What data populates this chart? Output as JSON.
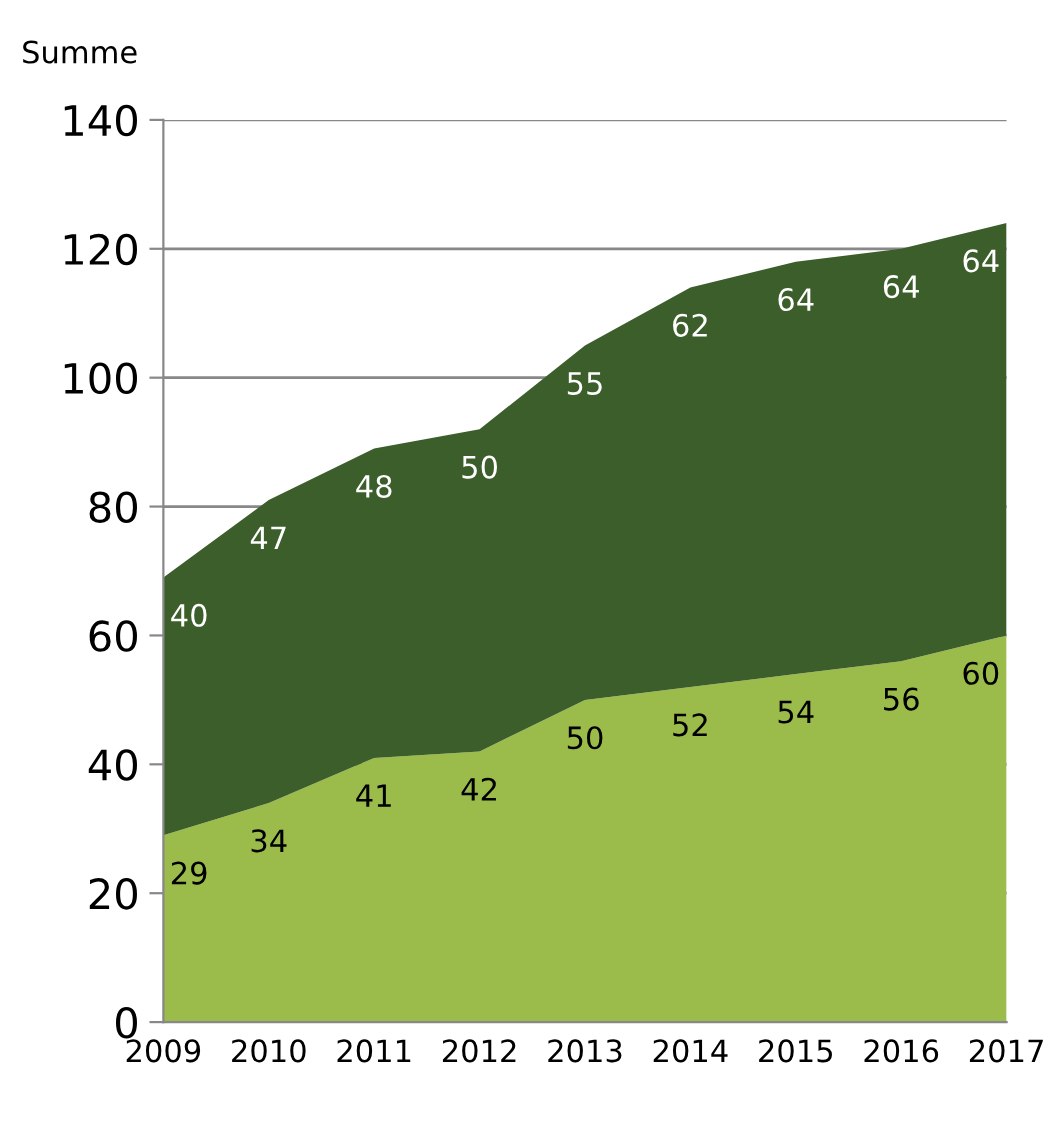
{
  "chart_data": {
    "type": "area",
    "stacked": true,
    "ylabel": "Summe",
    "categories": [
      "2009",
      "2010",
      "2011",
      "2012",
      "2013",
      "2014",
      "2015",
      "2016",
      "2017"
    ],
    "series": [
      {
        "color": "#9bbb4a",
        "values": [
          29,
          34,
          41,
          42,
          50,
          52,
          54,
          56,
          60
        ]
      },
      {
        "color": "#3b5e2b",
        "values": [
          40,
          47,
          48,
          50,
          55,
          62,
          64,
          64,
          64
        ]
      }
    ],
    "ylim": [
      0,
      140
    ],
    "yticks": [
      0,
      20,
      40,
      60,
      80,
      100,
      120,
      140
    ],
    "grid": "y",
    "data_labels": true,
    "legend": false
  }
}
